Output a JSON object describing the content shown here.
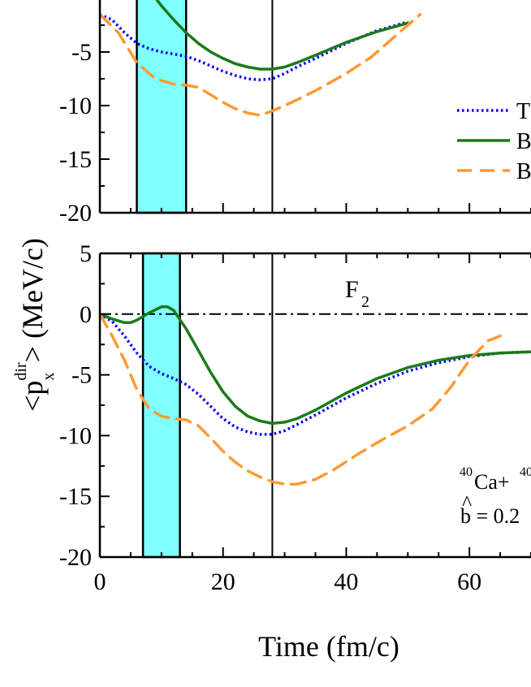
{
  "colors": {
    "band": "#80ffff",
    "series_T": "#0000ff",
    "series_B1": "#1a7a1a",
    "series_B2": "#ff9933",
    "axis": "#000000"
  },
  "chart_data": [
    {
      "panel": "top",
      "type": "line",
      "panel_label": "",
      "xlim": [
        0,
        70
      ],
      "ylim": [
        -20,
        0
      ],
      "ytick_labels": [
        "-5",
        "-10",
        "-15",
        "-20"
      ],
      "band_x": [
        6,
        14
      ],
      "vertical_line_x": 28,
      "series": [
        {
          "name": "T",
          "style": "dotted",
          "color": "#0000ff",
          "x": [
            0,
            2,
            4,
            6,
            8,
            10,
            12,
            14,
            16,
            18,
            20,
            22,
            24,
            26,
            28,
            30,
            32,
            35,
            40,
            45,
            50
          ],
          "y": [
            -1.5,
            -2.0,
            -3.2,
            -4.2,
            -4.7,
            -5.0,
            -5.2,
            -5.4,
            -5.8,
            -6.3,
            -6.8,
            -7.2,
            -7.5,
            -7.6,
            -7.5,
            -7.0,
            -6.4,
            -5.6,
            -4.2,
            -3.0,
            -2.2
          ]
        },
        {
          "name": "B",
          "style": "solid",
          "color": "#1a7a1a",
          "x": [
            0,
            2,
            4,
            6,
            8,
            10,
            12,
            14,
            16,
            18,
            20,
            22,
            24,
            26,
            28,
            30,
            32,
            35,
            40,
            45,
            50
          ],
          "y": [
            1.5,
            2.5,
            3.0,
            2.2,
            0.8,
            -0.7,
            -2.0,
            -3.2,
            -4.2,
            -5.0,
            -5.6,
            -6.1,
            -6.4,
            -6.6,
            -6.6,
            -6.4,
            -6.0,
            -5.3,
            -4.1,
            -3.1,
            -2.3
          ]
        },
        {
          "name": "B",
          "style": "dashed",
          "color": "#ff9933",
          "x": [
            0,
            3,
            6,
            9,
            12,
            14,
            16,
            18,
            20,
            22,
            24,
            26,
            28,
            30,
            33,
            36,
            40,
            44,
            48,
            52
          ],
          "y": [
            -1.5,
            -3.2,
            -6.0,
            -7.5,
            -8.0,
            -8.1,
            -8.3,
            -9.0,
            -9.7,
            -10.3,
            -10.7,
            -10.9,
            -10.5,
            -10.0,
            -9.2,
            -8.3,
            -7.0,
            -5.5,
            -3.5,
            -1.5
          ]
        }
      ]
    },
    {
      "panel": "bottom",
      "type": "line",
      "panel_label": "F",
      "panel_label_sub": "2",
      "xlim": [
        0,
        70
      ],
      "ylim": [
        -20,
        5
      ],
      "xticks": [
        0,
        20,
        40,
        60
      ],
      "xtick_labels": [
        "0",
        "20",
        "40",
        "60"
      ],
      "ytick_labels": [
        "5",
        "0",
        "-5",
        "-10",
        "-15",
        "-20"
      ],
      "band_x": [
        7,
        13
      ],
      "vertical_line_x": 28,
      "zero_line": true,
      "annotation_reaction": "Ca+",
      "annotation_reaction_sup1": "40",
      "annotation_reaction_sup2": "40",
      "annotation_b": "b = 0.2",
      "series": [
        {
          "name": "T",
          "style": "dotted",
          "color": "#0000ff",
          "x": [
            0,
            2,
            4,
            6,
            8,
            10,
            12,
            14,
            16,
            18,
            20,
            22,
            24,
            26,
            28,
            30,
            32,
            35,
            40,
            45,
            50,
            55,
            60,
            65,
            70
          ],
          "y": [
            0,
            -0.6,
            -1.8,
            -3.2,
            -4.3,
            -4.9,
            -5.3,
            -5.8,
            -6.6,
            -7.6,
            -8.6,
            -9.3,
            -9.7,
            -9.9,
            -9.9,
            -9.6,
            -9.1,
            -8.3,
            -6.9,
            -5.7,
            -4.7,
            -4.0,
            -3.5,
            -3.2,
            -3.1
          ]
        },
        {
          "name": "B",
          "style": "solid",
          "color": "#1a7a1a",
          "x": [
            0,
            2,
            4,
            5,
            6,
            8,
            10,
            11,
            12,
            14,
            16,
            18,
            20,
            22,
            24,
            26,
            28,
            30,
            32,
            35,
            40,
            45,
            50,
            55,
            60,
            65,
            70
          ],
          "y": [
            0,
            -0.4,
            -0.7,
            -0.7,
            -0.5,
            0.1,
            0.6,
            0.6,
            0.3,
            -1.2,
            -3.0,
            -4.8,
            -6.4,
            -7.6,
            -8.4,
            -8.8,
            -9.0,
            -8.9,
            -8.6,
            -7.9,
            -6.5,
            -5.3,
            -4.4,
            -3.8,
            -3.4,
            -3.2,
            -3.1
          ]
        },
        {
          "name": "B",
          "style": "dashed",
          "color": "#ff9933",
          "x": [
            0,
            2,
            4,
            6,
            8,
            10,
            12,
            14,
            16,
            18,
            20,
            22,
            24,
            26,
            28,
            30,
            32,
            35,
            38,
            42,
            46,
            50,
            54,
            57,
            60,
            63,
            65
          ],
          "y": [
            0,
            -1.8,
            -3.8,
            -6.2,
            -7.8,
            -8.4,
            -8.6,
            -8.7,
            -9.2,
            -10.2,
            -11.3,
            -12.2,
            -12.9,
            -13.4,
            -13.8,
            -14.0,
            -14.0,
            -13.6,
            -12.8,
            -11.5,
            -10.3,
            -9.2,
            -7.8,
            -6.0,
            -3.8,
            -2.2,
            -1.8
          ]
        }
      ]
    }
  ],
  "axis_titles": {
    "x": "Time (fm/c)",
    "y_main": "<p",
    "y_sup": "dir",
    "y_sub": "x",
    "y_tail": "> (MeV/c)"
  },
  "legend": {
    "entries": [
      {
        "label": "T",
        "style": "dotted",
        "color": "#0000ff"
      },
      {
        "label": "B",
        "style": "solid",
        "color": "#1a7a1a"
      },
      {
        "label": "B",
        "style": "dashed",
        "color": "#ff9933"
      }
    ]
  }
}
